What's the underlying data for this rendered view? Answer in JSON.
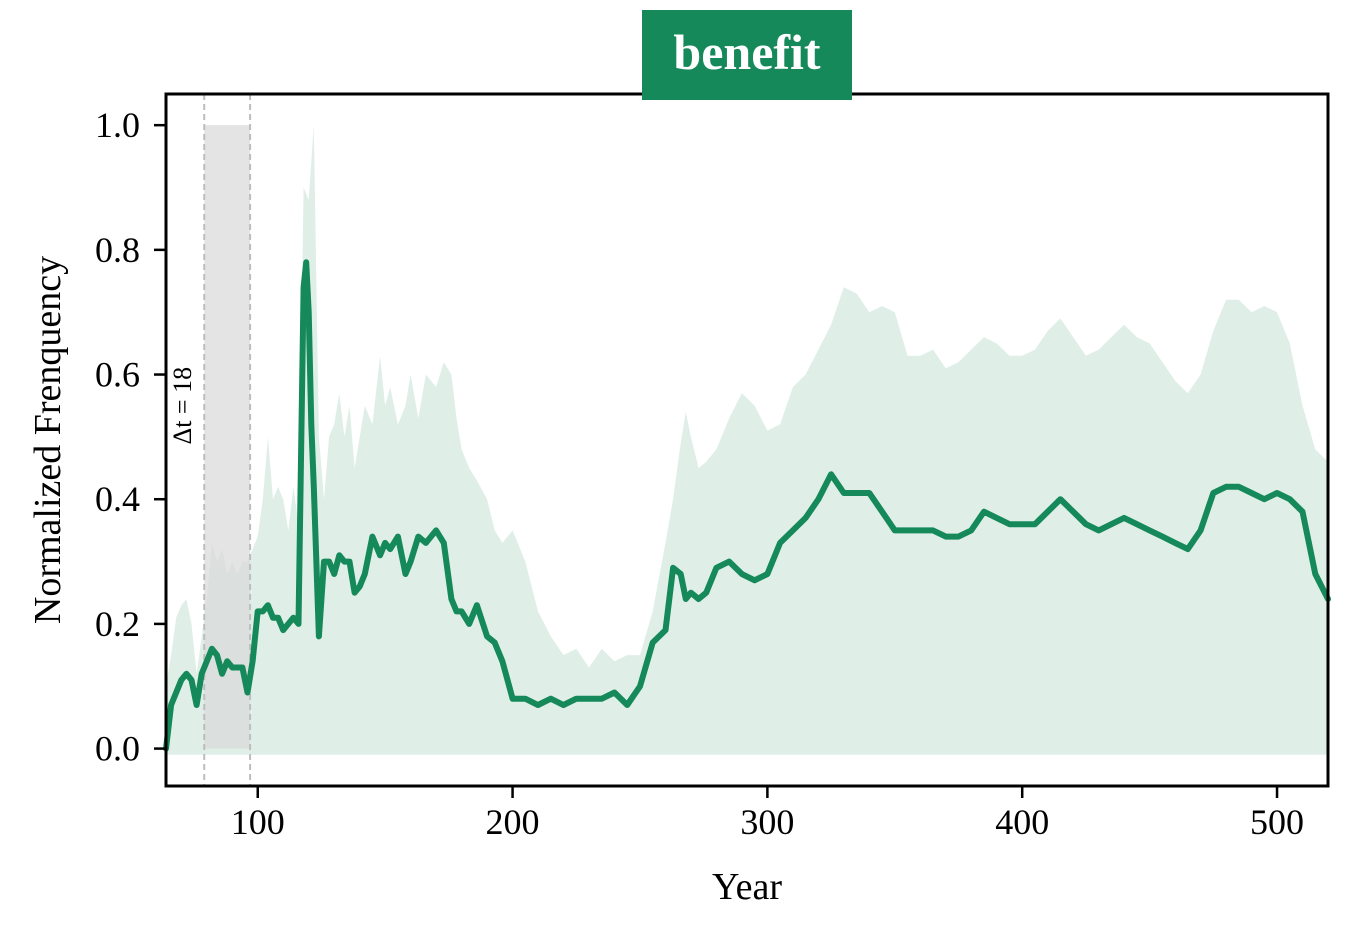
{
  "chart_data": {
    "type": "line",
    "title": "benefit",
    "xlabel": "Year",
    "ylabel": "Normalized Frenquency",
    "xlim": [
      64,
      520
    ],
    "ylim": [
      -0.06,
      1.05
    ],
    "xticks": [
      100,
      200,
      300,
      400,
      500
    ],
    "yticks": [
      0.0,
      0.2,
      0.4,
      0.6,
      0.8,
      1.0
    ],
    "xtick_labels": [
      "100",
      "200",
      "300",
      "400",
      "500"
    ],
    "ytick_labels": [
      "0.0",
      "0.2",
      "0.4",
      "0.6",
      "0.8",
      "1.0"
    ],
    "highlight": {
      "x_start": 79,
      "x_end": 97,
      "label": "Δt = 18"
    },
    "colors": {
      "line": "#15895a",
      "band": "#dfefe8",
      "highlight": "#d9d9d9",
      "title_bg": "#15895a"
    },
    "band": {
      "x": [
        64,
        66,
        68,
        70,
        72,
        74,
        76,
        78,
        80,
        82,
        84,
        86,
        88,
        90,
        92,
        94,
        96,
        98,
        100,
        102,
        104,
        106,
        108,
        110,
        112,
        114,
        116,
        118,
        120,
        122,
        124,
        126,
        128,
        130,
        132,
        134,
        136,
        138,
        140,
        142,
        145,
        148,
        150,
        152,
        155,
        158,
        160,
        163,
        166,
        170,
        173,
        176,
        178,
        180,
        183,
        186,
        190,
        193,
        196,
        200,
        205,
        210,
        215,
        220,
        225,
        230,
        235,
        240,
        245,
        250,
        255,
        260,
        263,
        266,
        268,
        270,
        273,
        276,
        280,
        285,
        290,
        295,
        300,
        305,
        310,
        315,
        320,
        325,
        330,
        335,
        340,
        345,
        350,
        355,
        360,
        365,
        370,
        375,
        380,
        385,
        390,
        395,
        400,
        405,
        410,
        415,
        420,
        425,
        430,
        435,
        440,
        445,
        450,
        455,
        460,
        465,
        470,
        475,
        480,
        485,
        490,
        495,
        500,
        505,
        510,
        515,
        520
      ],
      "upper": [
        0.1,
        0.15,
        0.21,
        0.23,
        0.24,
        0.2,
        0.12,
        0.18,
        0.24,
        0.33,
        0.3,
        0.32,
        0.28,
        0.3,
        0.28,
        0.3,
        0.3,
        0.32,
        0.34,
        0.4,
        0.5,
        0.4,
        0.42,
        0.4,
        0.35,
        0.42,
        0.36,
        0.9,
        0.88,
        1.0,
        0.5,
        0.4,
        0.5,
        0.52,
        0.57,
        0.5,
        0.55,
        0.45,
        0.5,
        0.55,
        0.52,
        0.63,
        0.55,
        0.58,
        0.52,
        0.55,
        0.6,
        0.53,
        0.6,
        0.58,
        0.62,
        0.6,
        0.53,
        0.48,
        0.45,
        0.43,
        0.4,
        0.35,
        0.33,
        0.35,
        0.3,
        0.22,
        0.18,
        0.15,
        0.16,
        0.13,
        0.16,
        0.14,
        0.15,
        0.15,
        0.22,
        0.33,
        0.4,
        0.49,
        0.54,
        0.5,
        0.45,
        0.46,
        0.48,
        0.53,
        0.57,
        0.55,
        0.51,
        0.52,
        0.58,
        0.6,
        0.64,
        0.68,
        0.74,
        0.73,
        0.7,
        0.71,
        0.7,
        0.63,
        0.63,
        0.64,
        0.61,
        0.62,
        0.64,
        0.66,
        0.65,
        0.63,
        0.63,
        0.64,
        0.67,
        0.69,
        0.66,
        0.63,
        0.64,
        0.66,
        0.68,
        0.66,
        0.65,
        0.62,
        0.59,
        0.57,
        0.6,
        0.67,
        0.72,
        0.72,
        0.7,
        0.71,
        0.7,
        0.65,
        0.55,
        0.48,
        0.46
      ],
      "lower": [
        -0.01,
        -0.01,
        -0.01,
        -0.01,
        -0.01,
        -0.01,
        -0.01,
        -0.01,
        -0.01,
        -0.01,
        -0.01,
        -0.01,
        -0.01,
        -0.01,
        -0.01,
        -0.01,
        -0.01,
        -0.01,
        -0.01,
        -0.01,
        -0.01,
        -0.01,
        -0.01,
        -0.01,
        -0.01,
        -0.01,
        -0.01,
        -0.01,
        -0.01,
        -0.01,
        -0.01,
        -0.01,
        -0.01,
        -0.01,
        -0.01,
        -0.01,
        -0.01,
        -0.01,
        -0.01,
        -0.01,
        -0.01,
        -0.01,
        -0.01,
        -0.01,
        -0.01,
        -0.01,
        -0.01,
        -0.01,
        -0.01,
        -0.01,
        -0.01,
        -0.01,
        -0.01,
        -0.01,
        -0.01,
        -0.01,
        -0.01,
        -0.01,
        -0.01,
        -0.01,
        -0.01,
        -0.01,
        -0.01,
        -0.01,
        -0.01,
        -0.01,
        -0.01,
        -0.01,
        -0.01,
        -0.01,
        -0.01,
        -0.01,
        -0.01,
        -0.01,
        -0.01,
        -0.01,
        -0.01,
        -0.01,
        -0.01,
        -0.01,
        -0.01,
        -0.01,
        -0.01,
        -0.01,
        -0.01,
        -0.01,
        -0.01,
        -0.01,
        -0.01,
        -0.01,
        -0.01,
        -0.01,
        -0.01,
        -0.01,
        -0.01,
        -0.01,
        -0.01,
        -0.01,
        -0.01,
        -0.01,
        -0.01,
        -0.01,
        -0.01,
        -0.01,
        -0.01,
        -0.01,
        -0.01,
        -0.01,
        -0.01,
        -0.01,
        -0.01,
        -0.01,
        -0.01,
        -0.01,
        -0.01,
        -0.01,
        -0.01,
        -0.01,
        -0.01,
        -0.01,
        -0.01,
        -0.01,
        -0.01,
        -0.01,
        -0.01,
        -0.01,
        -0.01
      ]
    },
    "series": [
      {
        "x": [
          64,
          66,
          68,
          70,
          72,
          74,
          76,
          78,
          80,
          82,
          84,
          86,
          88,
          90,
          92,
          94,
          96,
          98,
          100,
          102,
          104,
          106,
          108,
          110,
          112,
          114,
          116,
          118,
          119,
          120,
          121,
          122,
          124,
          126,
          128,
          130,
          132,
          134,
          136,
          138,
          140,
          142,
          145,
          148,
          150,
          152,
          155,
          158,
          160,
          163,
          166,
          170,
          173,
          176,
          178,
          180,
          183,
          186,
          190,
          193,
          196,
          200,
          205,
          210,
          215,
          220,
          225,
          230,
          235,
          240,
          245,
          250,
          255,
          260,
          263,
          266,
          268,
          270,
          273,
          276,
          280,
          285,
          290,
          295,
          300,
          305,
          310,
          315,
          320,
          325,
          330,
          335,
          340,
          345,
          350,
          355,
          360,
          365,
          370,
          375,
          380,
          385,
          390,
          395,
          400,
          405,
          410,
          415,
          420,
          425,
          430,
          435,
          440,
          445,
          450,
          455,
          460,
          465,
          470,
          475,
          480,
          485,
          490,
          495,
          500,
          505,
          510,
          515,
          520
        ],
        "y": [
          0.0,
          0.07,
          0.09,
          0.11,
          0.12,
          0.11,
          0.07,
          0.12,
          0.14,
          0.16,
          0.15,
          0.12,
          0.14,
          0.13,
          0.13,
          0.13,
          0.09,
          0.14,
          0.22,
          0.22,
          0.23,
          0.21,
          0.21,
          0.19,
          0.2,
          0.21,
          0.2,
          0.74,
          0.78,
          0.7,
          0.52,
          0.42,
          0.18,
          0.3,
          0.3,
          0.28,
          0.31,
          0.3,
          0.3,
          0.25,
          0.26,
          0.28,
          0.34,
          0.31,
          0.33,
          0.32,
          0.34,
          0.28,
          0.3,
          0.34,
          0.33,
          0.35,
          0.33,
          0.24,
          0.22,
          0.22,
          0.2,
          0.23,
          0.18,
          0.17,
          0.14,
          0.08,
          0.08,
          0.07,
          0.08,
          0.07,
          0.08,
          0.08,
          0.08,
          0.09,
          0.07,
          0.1,
          0.17,
          0.19,
          0.29,
          0.28,
          0.24,
          0.25,
          0.24,
          0.25,
          0.29,
          0.3,
          0.28,
          0.27,
          0.28,
          0.33,
          0.35,
          0.37,
          0.4,
          0.44,
          0.41,
          0.41,
          0.41,
          0.38,
          0.35,
          0.35,
          0.35,
          0.35,
          0.34,
          0.34,
          0.35,
          0.38,
          0.37,
          0.36,
          0.36,
          0.36,
          0.38,
          0.4,
          0.38,
          0.36,
          0.35,
          0.36,
          0.37,
          0.36,
          0.35,
          0.34,
          0.33,
          0.32,
          0.35,
          0.41,
          0.42,
          0.42,
          0.41,
          0.4,
          0.41,
          0.4,
          0.38,
          0.28,
          0.24
        ]
      }
    ],
    "grid": false,
    "legend": "none"
  }
}
